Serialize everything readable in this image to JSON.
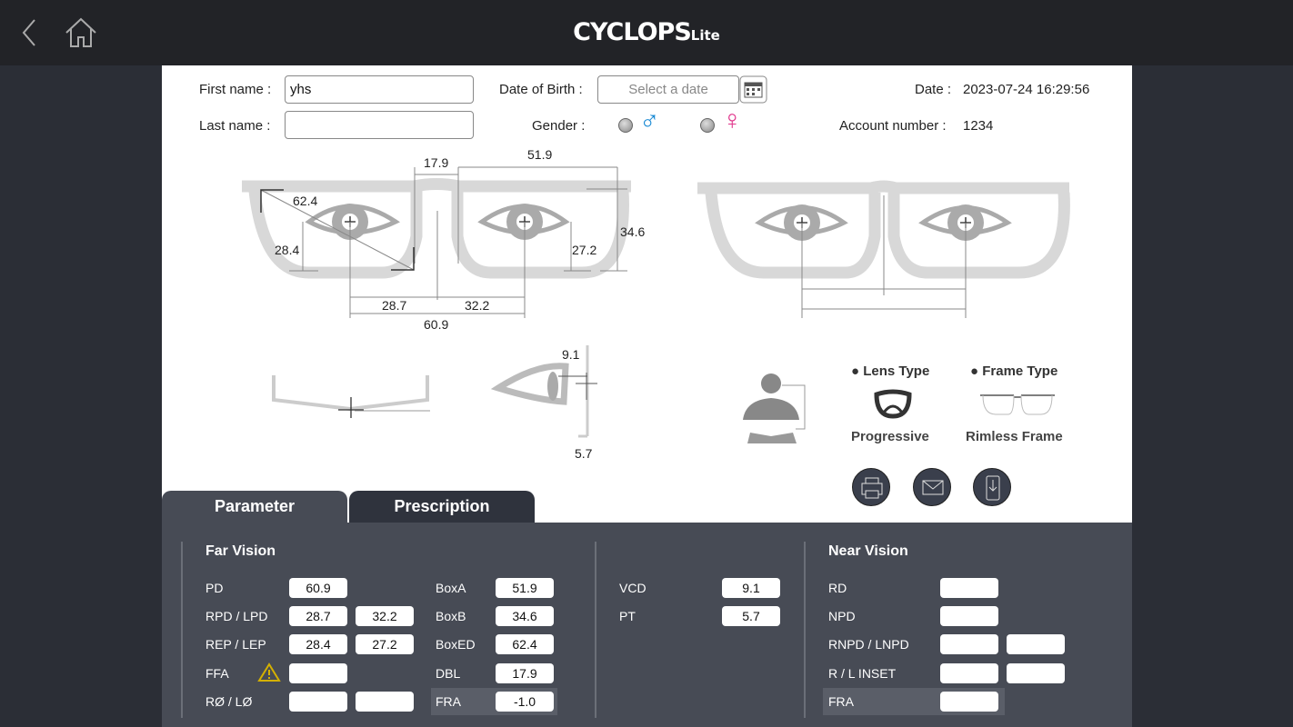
{
  "header": {
    "back_icon": "chevron-left",
    "home_icon": "home",
    "logo_main": "CYCLOPS",
    "logo_sub": "Lite"
  },
  "form": {
    "first_name_label": "First name :",
    "first_name_value": "yhs",
    "last_name_label": "Last name :",
    "last_name_value": "",
    "dob_label": "Date of Birth :",
    "dob_placeholder": "Select a date",
    "gender_label": "Gender :",
    "male_symbol": "♂",
    "female_symbol": "♀",
    "date_label": "Date :",
    "date_value": "2023-07-24 16:29:56",
    "account_label": "Account number :",
    "account_value": "1234"
  },
  "diagram": {
    "dbl": "17.9",
    "boxa": "51.9",
    "boxed": "62.4",
    "rep": "28.4",
    "lep": "27.2",
    "boxb": "34.6",
    "rpd": "28.7",
    "lpd": "32.2",
    "pd": "60.9",
    "vcd": "9.1",
    "pt": "5.7"
  },
  "types": {
    "lens_header": "● Lens Type",
    "lens_value": "Progressive",
    "frame_header": "● Frame Type",
    "frame_value": "Rimless Frame"
  },
  "actions": {
    "print_icon": "printer",
    "email_icon": "envelope",
    "export_icon": "phone-download"
  },
  "tabs": [
    {
      "label": "Parameter",
      "active": true
    },
    {
      "label": "Prescription",
      "active": false
    }
  ],
  "far": {
    "title": "Far Vision",
    "pd_label": "PD",
    "pd": "60.9",
    "rpd_lpd_label": "RPD / LPD",
    "rpd": "28.7",
    "lpd": "32.2",
    "rep_lep_label": "REP / LEP",
    "rep": "28.4",
    "lep": "27.2",
    "ffa_label": "FFA",
    "ffa": "",
    "ro_lo_label": "RØ / LØ",
    "ro": "",
    "lo": "",
    "boxa_label": "BoxA",
    "boxa": "51.9",
    "boxb_label": "BoxB",
    "boxb": "34.6",
    "boxed_label": "BoxED",
    "boxed": "62.4",
    "dbl_label": "DBL",
    "dbl": "17.9",
    "fra_label": "FRA",
    "fra": "-1.0"
  },
  "mid": {
    "vcd_label": "VCD",
    "vcd": "9.1",
    "pt_label": "PT",
    "pt": "5.7"
  },
  "near": {
    "title": "Near Vision",
    "rd_label": "RD",
    "rd": "",
    "npd_label": "NPD",
    "npd": "",
    "rnpd_lnpd_label": "RNPD / LNPD",
    "rnpd": "",
    "lnpd": "",
    "inset_label": "R / L INSET",
    "rinset": "",
    "linset": "",
    "fra_label": "FRA",
    "fra": ""
  },
  "colors": {
    "topbar": "#222327",
    "panel": "#474b55",
    "tab_inactive": "#2f333d",
    "male": "#1a8ad4",
    "female": "#e0338a",
    "warning": "#d4b000"
  }
}
